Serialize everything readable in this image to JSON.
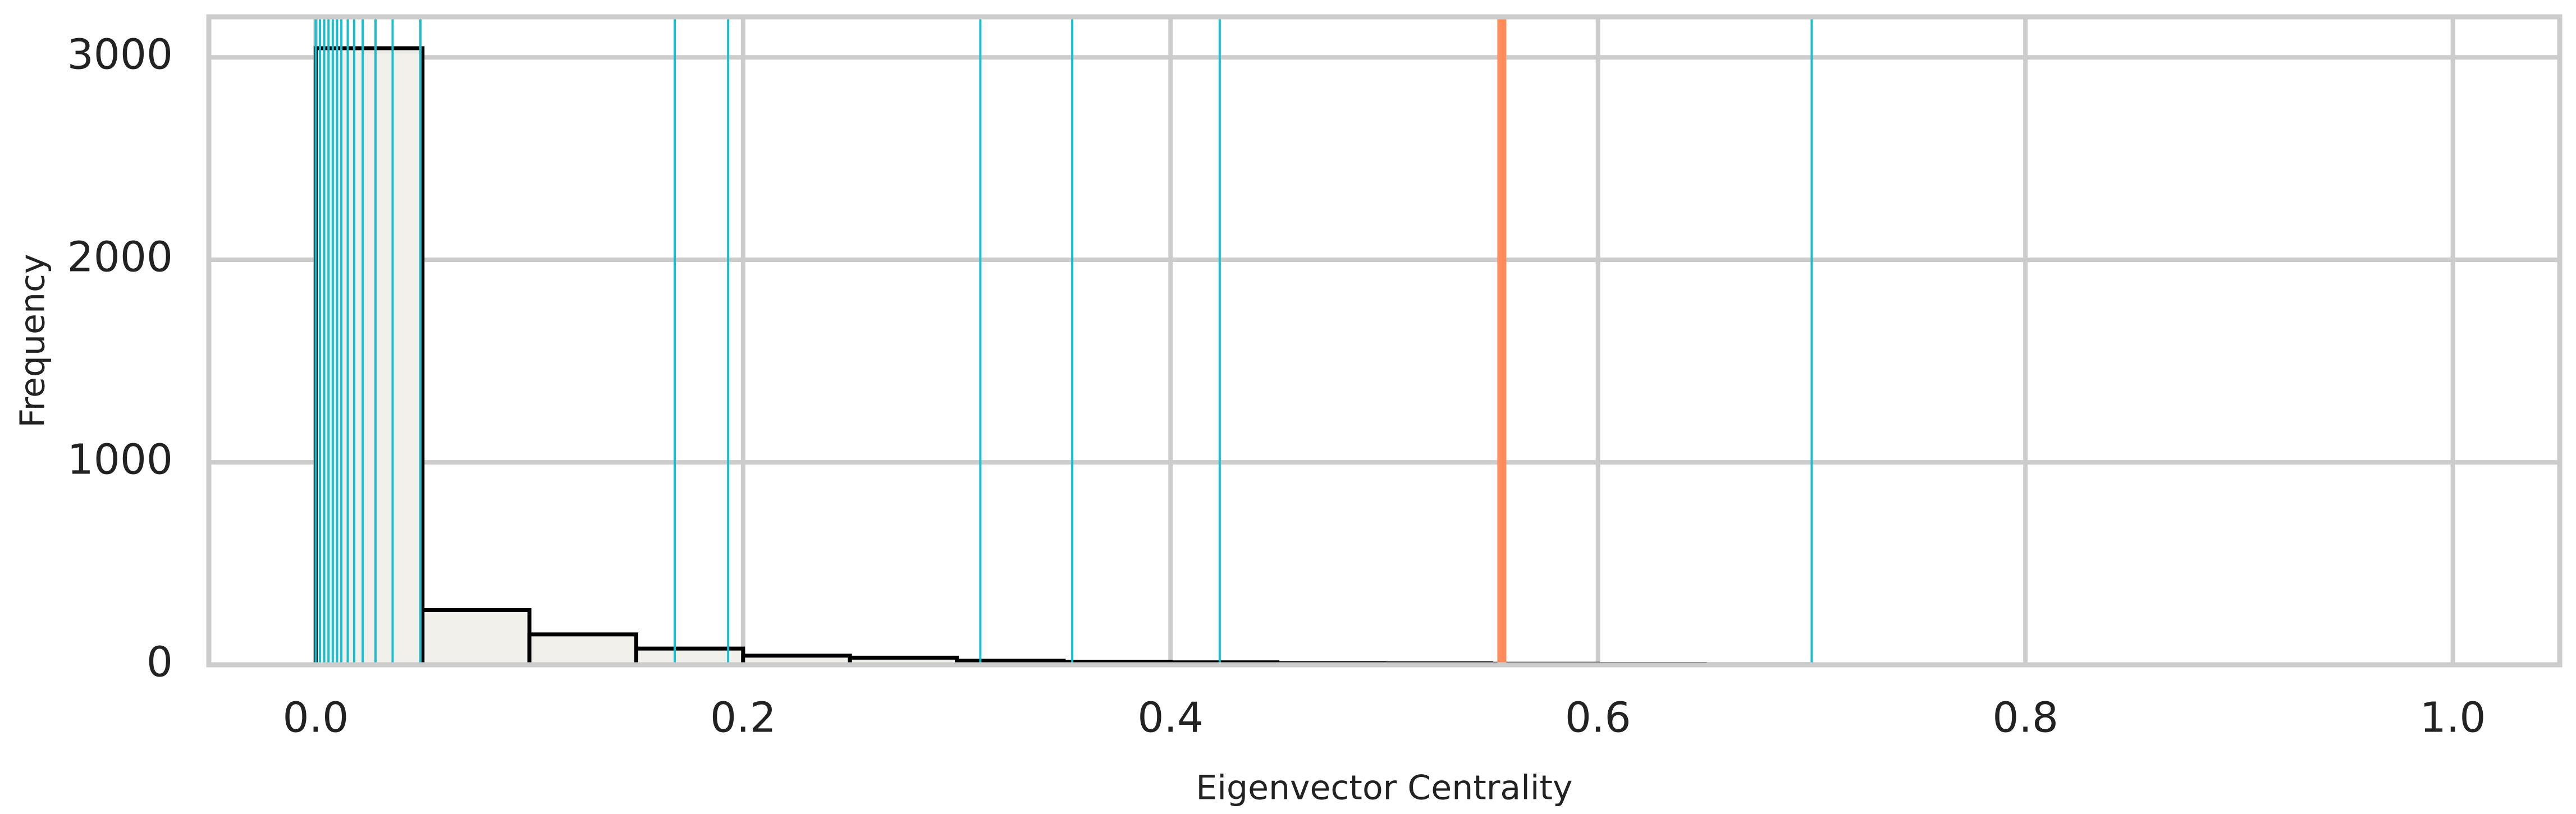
{
  "chart_data": {
    "type": "bar",
    "subtype": "histogram",
    "xlabel": "Eigenvector Centrality",
    "ylabel": "Frequency",
    "xlim": [
      -0.05,
      1.05
    ],
    "ylim": [
      0,
      3200
    ],
    "x_ticks": [
      0.0,
      0.2,
      0.4,
      0.6,
      0.8,
      1.0
    ],
    "x_tick_labels": [
      "0.0",
      "0.2",
      "0.4",
      "0.6",
      "0.8",
      "1.0"
    ],
    "y_ticks": [
      0,
      1000,
      2000,
      3000
    ],
    "y_tick_labels": [
      "0",
      "1000",
      "2000",
      "3000"
    ],
    "grid": true,
    "bins": [
      {
        "start": 0.0,
        "end": 0.05,
        "count": 3045
      },
      {
        "start": 0.05,
        "end": 0.1,
        "count": 270
      },
      {
        "start": 0.1,
        "end": 0.15,
        "count": 150
      },
      {
        "start": 0.15,
        "end": 0.2,
        "count": 80
      },
      {
        "start": 0.2,
        "end": 0.25,
        "count": 45
      },
      {
        "start": 0.25,
        "end": 0.3,
        "count": 35
      },
      {
        "start": 0.3,
        "end": 0.35,
        "count": 20
      },
      {
        "start": 0.35,
        "end": 0.4,
        "count": 15
      },
      {
        "start": 0.4,
        "end": 0.45,
        "count": 12
      },
      {
        "start": 0.45,
        "end": 0.5,
        "count": 8
      },
      {
        "start": 0.5,
        "end": 0.55,
        "count": 7
      },
      {
        "start": 0.55,
        "end": 0.6,
        "count": 5
      },
      {
        "start": 0.6,
        "end": 0.65,
        "count": 4
      },
      {
        "start": 0.65,
        "end": 0.7,
        "count": 3
      },
      {
        "start": 0.7,
        "end": 0.75,
        "count": 2
      }
    ],
    "reference_lines_teal": [
      0.0,
      0.002,
      0.004,
      0.006,
      0.008,
      0.01,
      0.012,
      0.015,
      0.018,
      0.022,
      0.028,
      0.036,
      0.049,
      0.168,
      0.193,
      0.311,
      0.354,
      0.423,
      0.7
    ],
    "reference_line_highlight": 0.555,
    "colors": {
      "bar_fill": "#f2f0eb",
      "bar_edge": "#000000",
      "teal_line": "#17becf",
      "highlight_line": "#ff8c5a",
      "grid": "#cccccc",
      "frame": "#cccccc"
    }
  }
}
